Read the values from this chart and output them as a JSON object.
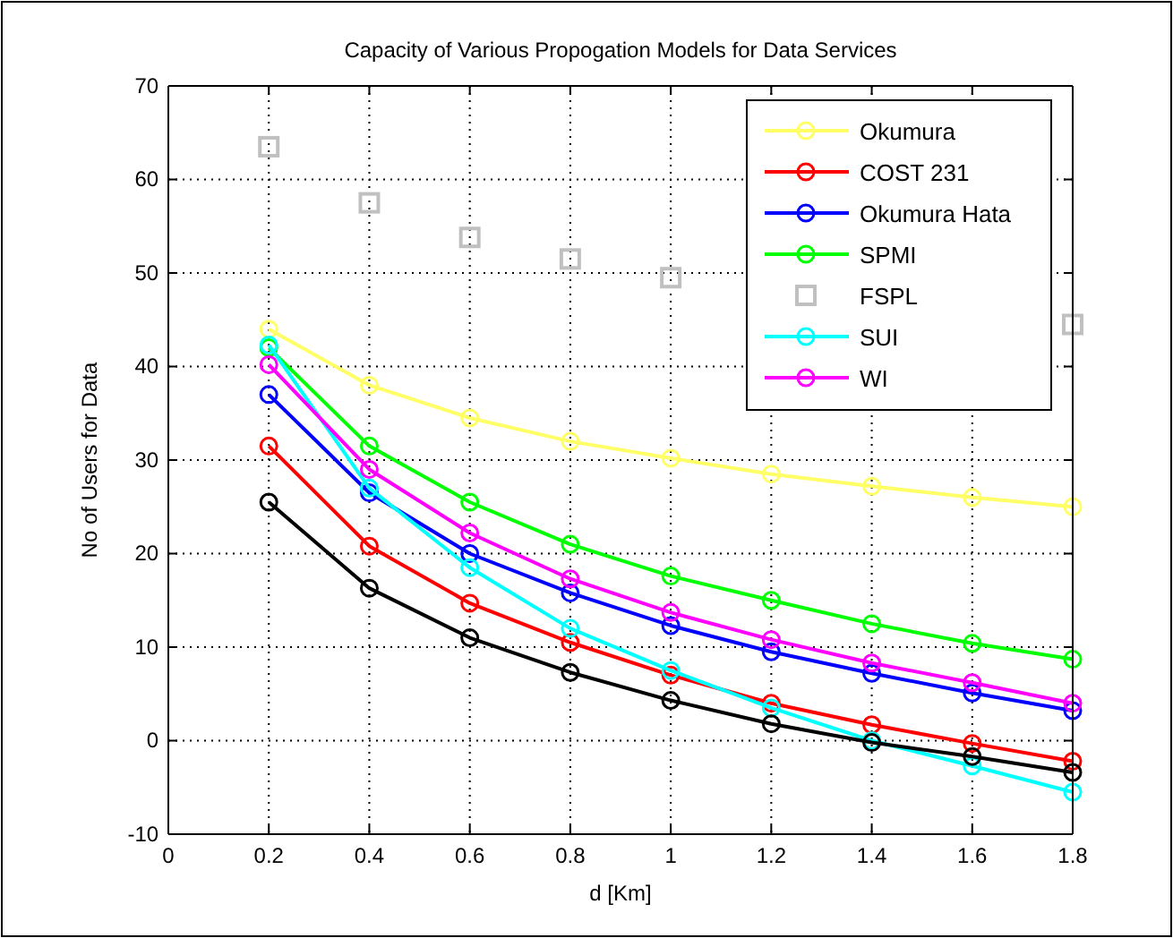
{
  "chart_data": {
    "type": "line",
    "title": "Capacity of Various Propogation Models for Data Services",
    "xlabel": "d [Km]",
    "ylabel": "No of Users for Data",
    "x": [
      0.2,
      0.4,
      0.6,
      0.8,
      1.0,
      1.2,
      1.4,
      1.6,
      1.8
    ],
    "xlim": [
      0,
      1.8
    ],
    "xticks": [
      0,
      0.2,
      0.4,
      0.6,
      0.8,
      1,
      1.2,
      1.4,
      1.6,
      1.8
    ],
    "ylim": [
      -10,
      70
    ],
    "yticks": [
      -10,
      0,
      10,
      20,
      30,
      40,
      50,
      60,
      70
    ],
    "grid": true,
    "legend": "top right",
    "marker": "circle",
    "line_style": "solid",
    "series": [
      {
        "name": "Okumura",
        "color": "#ffff66",
        "values": [
          44,
          38,
          34.5,
          32,
          30.2,
          28.5,
          27.2,
          26,
          25
        ]
      },
      {
        "name": "COST 231",
        "color": "#ff0000",
        "values": [
          31.5,
          20.8,
          14.7,
          10.5,
          7,
          4,
          1.7,
          -0.3,
          -2.2
        ]
      },
      {
        "name": "Okumura Hata",
        "color": "#0000ff",
        "values": [
          37,
          26.5,
          20,
          15.8,
          12.3,
          9.5,
          7.2,
          5.1,
          3.2
        ]
      },
      {
        "name": "SPMI",
        "color": "#00ff00",
        "values": [
          42,
          31.5,
          25.5,
          21,
          17.6,
          15,
          12.5,
          10.4,
          8.7
        ]
      },
      {
        "name": "FSPL",
        "color": "#c0c0c0",
        "type": "scatter",
        "marker": "square",
        "values": [
          63.5,
          57.5,
          53.8,
          51.5,
          49.5,
          null,
          null,
          null,
          44.5
        ]
      },
      {
        "name": "SUI",
        "color": "#00ffff",
        "values": [
          42.3,
          27,
          18.5,
          12,
          7.5,
          3.5,
          0,
          -2.7,
          -5.5
        ]
      },
      {
        "name": "WI",
        "color": "#ff00ff",
        "values": [
          40.2,
          29,
          22.2,
          17.3,
          13.7,
          10.8,
          8.3,
          6.2,
          4
        ]
      },
      {
        "color": "#000000",
        "values": [
          25.5,
          16.3,
          11,
          7.3,
          4.3,
          1.8,
          -0.2,
          -1.7,
          -3.4
        ]
      }
    ]
  }
}
